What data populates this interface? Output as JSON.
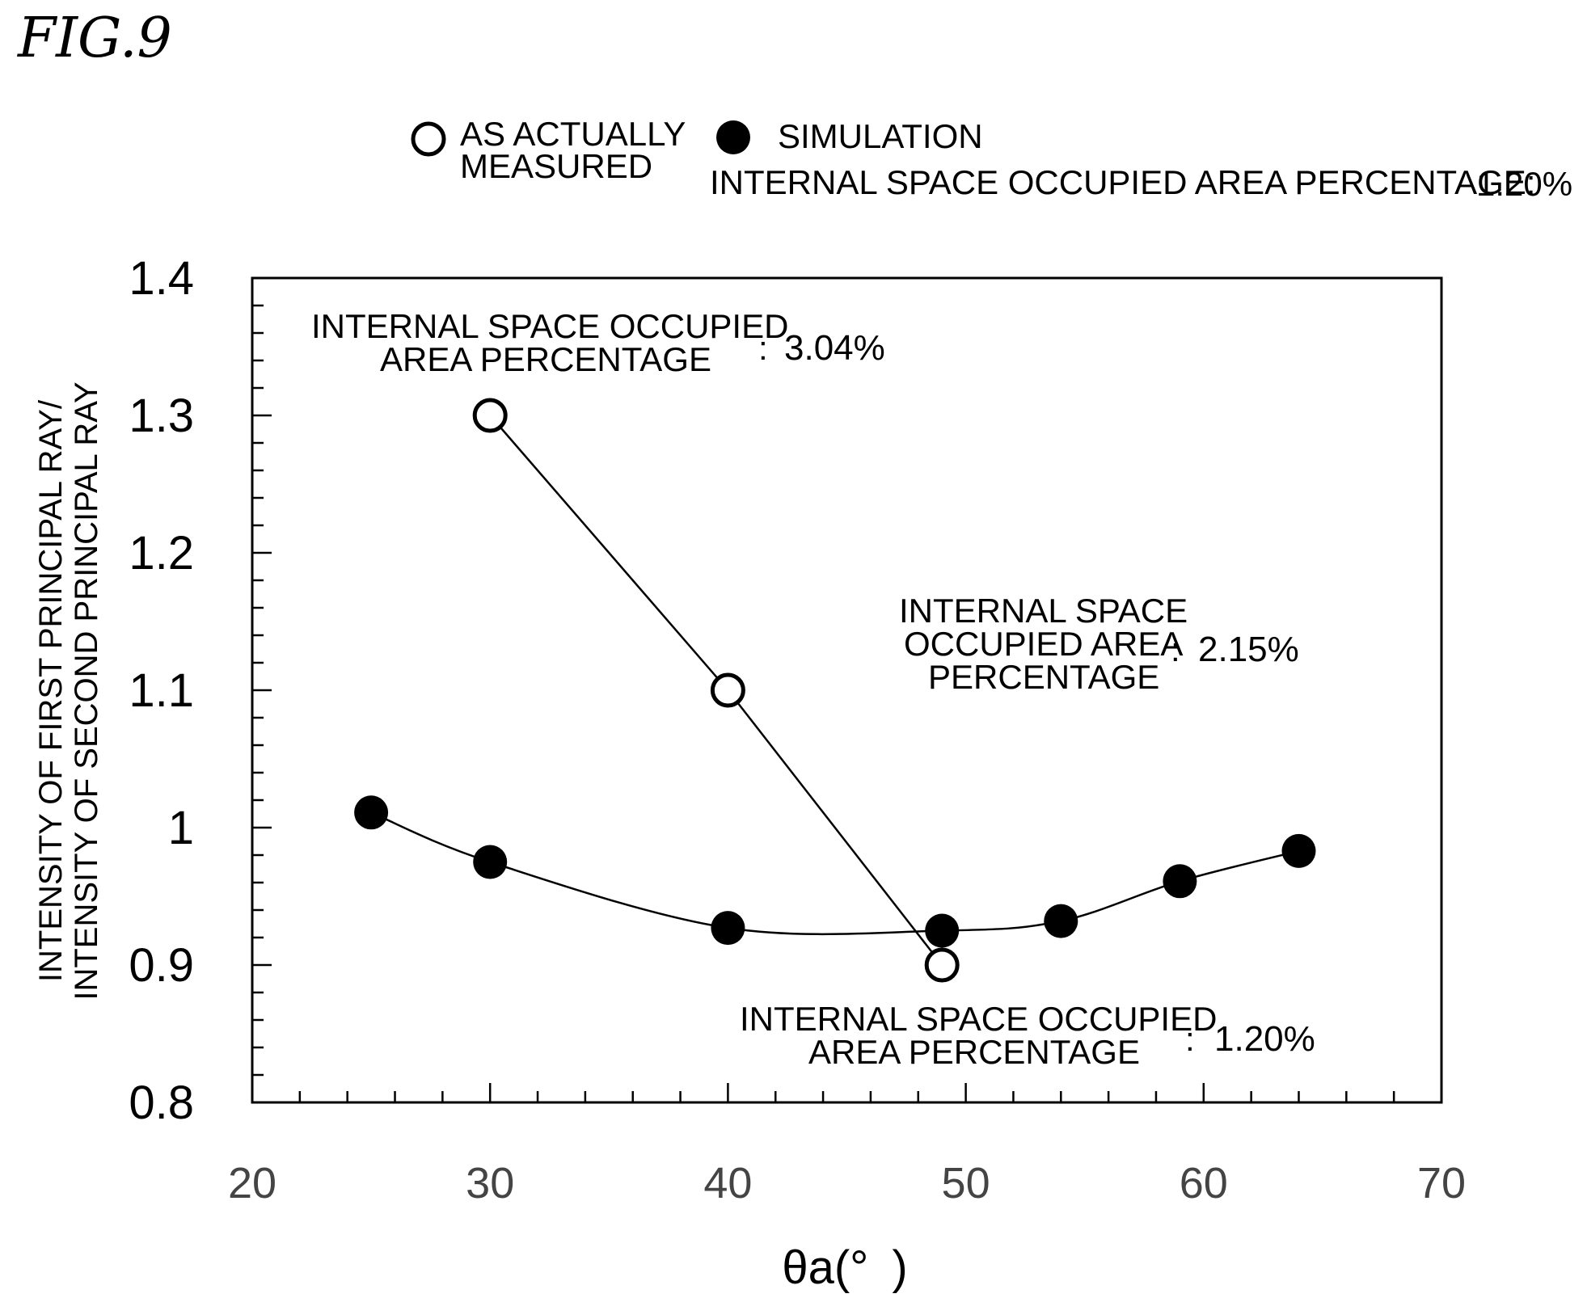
{
  "figure_label": "FIG.9",
  "legend": {
    "measured_label_line1": "AS ACTUALLY",
    "measured_label_line2": "MEASURED",
    "simulation_label": "SIMULATION",
    "subtitle_text": "INTERNAL SPACE OCCUPIED AREA PERCENTAGE:",
    "subtitle_value": "1.20%"
  },
  "annotations": {
    "a1": {
      "line1": "INTERNAL SPACE OCCUPIED",
      "line2": "AREA PERCENTAGE",
      "sep": ":",
      "value": "3.04%"
    },
    "a2": {
      "line1": "INTERNAL SPACE",
      "line2": "OCCUPIED AREA",
      "line3": "PERCENTAGE",
      "sep": ":",
      "value": "2.15%"
    },
    "a3": {
      "line1": "INTERNAL SPACE OCCUPIED",
      "line2": "AREA PERCENTAGE",
      "sep": ":",
      "value": "1.20%"
    }
  },
  "chart_data": {
    "type": "scatter",
    "title": "",
    "xlabel": "θa(° )",
    "ylabel_line1": "INTENSITY OF FIRST PRINCIPAL RAY/",
    "ylabel_line2": "INTENSITY OF SECOND PRINCIPAL RAY",
    "xlim": [
      20,
      70
    ],
    "ylim": [
      0.8,
      1.4
    ],
    "x_ticks": [
      "20",
      "30",
      "40",
      "50",
      "60",
      "70"
    ],
    "y_ticks": [
      "0.8",
      "0.9",
      "1",
      "1.1",
      "1.2",
      "1.3",
      "1.4"
    ],
    "grid": false,
    "legend_position": "top",
    "series": [
      {
        "name": "AS ACTUALLY MEASURED",
        "marker": "open-circle",
        "connect": "straight",
        "x": [
          30,
          40,
          49
        ],
        "y": [
          1.3,
          1.1,
          0.9
        ]
      },
      {
        "name": "SIMULATION",
        "marker": "filled-circle",
        "connect": "smooth",
        "x": [
          25,
          30,
          40,
          49,
          54,
          59,
          64
        ],
        "y": [
          1.011,
          0.975,
          0.927,
          0.925,
          0.932,
          0.961,
          0.983
        ]
      }
    ],
    "colors": {
      "ink": "#000000",
      "tick_text": "#444444"
    }
  }
}
